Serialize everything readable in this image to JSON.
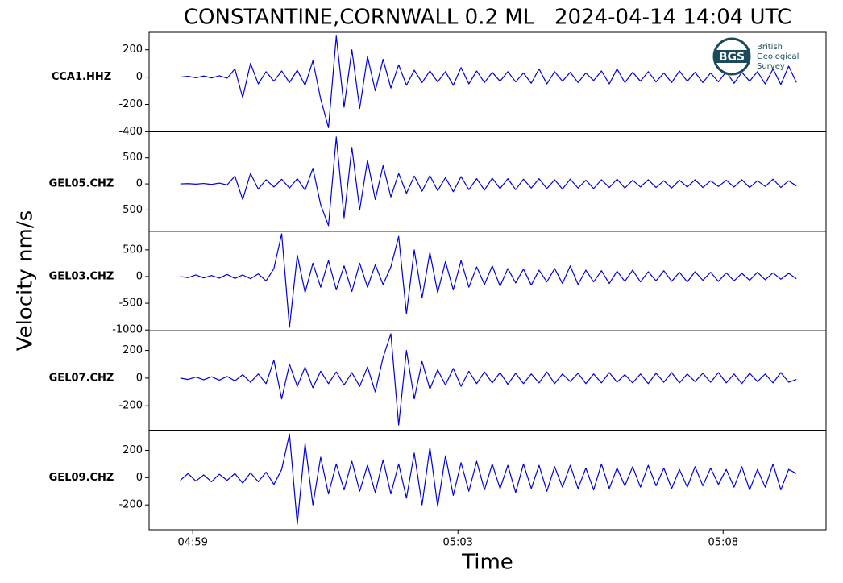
{
  "title": "CONSTANTINE,CORNWALL 0.2 ML   2024-04-14 14:04 UTC",
  "ylabel": "Velocity nm/s",
  "xlabel": "Time",
  "xlim": [
    298.8,
    309.65
  ],
  "xticks": [
    {
      "value": 299.5,
      "label": "04:59"
    },
    {
      "value": 303.75,
      "label": "05:03"
    },
    {
      "value": 308.0,
      "label": "05:08"
    }
  ],
  "logo": {
    "abbr": "BGS",
    "lines": [
      "British",
      "Geological",
      "Survey"
    ]
  },
  "chart_data": [
    {
      "type": "line",
      "label": "CCA1.HHZ",
      "color": "#0000dd",
      "ylim": [
        -400,
        328
      ],
      "yticks": [
        -400,
        -200,
        0,
        200
      ],
      "x": [
        299.3,
        299.425,
        299.55,
        299.675,
        299.8,
        299.925,
        300.05,
        300.175,
        300.3,
        300.425,
        300.55,
        300.675,
        300.8,
        300.925,
        301.05,
        301.175,
        301.3,
        301.425,
        301.55,
        301.675,
        301.8,
        301.925,
        302.05,
        302.175,
        302.3,
        302.425,
        302.55,
        302.675,
        302.8,
        302.925,
        303.05,
        303.175,
        303.3,
        303.425,
        303.55,
        303.675,
        303.8,
        303.925,
        304.05,
        304.175,
        304.3,
        304.425,
        304.55,
        304.675,
        304.8,
        304.925,
        305.05,
        305.175,
        305.3,
        305.425,
        305.55,
        305.675,
        305.8,
        305.925,
        306.05,
        306.175,
        306.3,
        306.425,
        306.55,
        306.675,
        306.8,
        306.925,
        307.05,
        307.175,
        307.3,
        307.425,
        307.55,
        307.675,
        307.8,
        307.925,
        308.05,
        308.175,
        308.3,
        308.425,
        308.55,
        308.675,
        308.8,
        308.925,
        309.05,
        309.175
      ],
      "values": [
        0,
        6,
        -5,
        8,
        -6,
        10,
        -8,
        60,
        -150,
        100,
        -50,
        40,
        -30,
        45,
        -40,
        50,
        -60,
        120,
        -160,
        -370,
        300,
        -220,
        200,
        -230,
        150,
        -100,
        130,
        -80,
        90,
        -60,
        50,
        -40,
        45,
        -35,
        40,
        -60,
        70,
        -50,
        45,
        -40,
        35,
        -30,
        40,
        -35,
        30,
        -45,
        60,
        -50,
        40,
        -30,
        35,
        -40,
        30,
        -25,
        45,
        -50,
        60,
        -40,
        35,
        -30,
        40,
        -35,
        30,
        -40,
        45,
        -30,
        35,
        -40,
        30,
        -35,
        40,
        -45,
        35,
        -30,
        40,
        -50,
        60,
        -55,
        80,
        -40
      ]
    },
    {
      "type": "line",
      "label": "GEL05.CHZ",
      "color": "#0000dd",
      "ylim": [
        -908,
        1000
      ],
      "yticks": [
        -500,
        0,
        500
      ],
      "x": [
        299.3,
        299.425,
        299.55,
        299.675,
        299.8,
        299.925,
        300.05,
        300.175,
        300.3,
        300.425,
        300.55,
        300.675,
        300.8,
        300.925,
        301.05,
        301.175,
        301.3,
        301.425,
        301.55,
        301.675,
        301.8,
        301.925,
        302.05,
        302.175,
        302.3,
        302.425,
        302.55,
        302.675,
        302.8,
        302.925,
        303.05,
        303.175,
        303.3,
        303.425,
        303.55,
        303.675,
        303.8,
        303.925,
        304.05,
        304.175,
        304.3,
        304.425,
        304.55,
        304.675,
        304.8,
        304.925,
        305.05,
        305.175,
        305.3,
        305.425,
        305.55,
        305.675,
        305.8,
        305.925,
        306.05,
        306.175,
        306.3,
        306.425,
        306.55,
        306.675,
        306.8,
        306.925,
        307.05,
        307.175,
        307.3,
        307.425,
        307.55,
        307.675,
        307.8,
        307.925,
        308.05,
        308.175,
        308.3,
        308.425,
        308.55,
        308.675,
        308.8,
        308.925,
        309.05,
        309.175
      ],
      "values": [
        0,
        5,
        -5,
        8,
        -10,
        15,
        -20,
        150,
        -300,
        200,
        -100,
        80,
        -60,
        90,
        -80,
        100,
        -120,
        300,
        -400,
        -800,
        900,
        -650,
        700,
        -500,
        450,
        -300,
        350,
        -250,
        200,
        -180,
        150,
        -140,
        160,
        -130,
        120,
        -150,
        140,
        -110,
        100,
        -120,
        110,
        -90,
        100,
        -110,
        90,
        -80,
        100,
        -90,
        80,
        -100,
        90,
        -80,
        70,
        -90,
        80,
        -70,
        90,
        -80,
        70,
        -60,
        80,
        -70,
        60,
        -80,
        70,
        -60,
        80,
        -70,
        60,
        -50,
        70,
        -60,
        80,
        -70,
        60,
        -50,
        90,
        -70,
        60,
        -40
      ]
    },
    {
      "type": "line",
      "label": "GEL03.CHZ",
      "color": "#0000dd",
      "ylim": [
        -1015,
        848
      ],
      "yticks": [
        -1000,
        -500,
        0,
        500
      ],
      "x": [
        299.3,
        299.425,
        299.55,
        299.675,
        299.8,
        299.925,
        300.05,
        300.175,
        300.3,
        300.425,
        300.55,
        300.675,
        300.8,
        300.925,
        301.05,
        301.175,
        301.3,
        301.425,
        301.55,
        301.675,
        301.8,
        301.925,
        302.05,
        302.175,
        302.3,
        302.425,
        302.55,
        302.675,
        302.8,
        302.925,
        303.05,
        303.175,
        303.3,
        303.425,
        303.55,
        303.675,
        303.8,
        303.925,
        304.05,
        304.175,
        304.3,
        304.425,
        304.55,
        304.675,
        304.8,
        304.925,
        305.05,
        305.175,
        305.3,
        305.425,
        305.55,
        305.675,
        305.8,
        305.925,
        306.05,
        306.175,
        306.3,
        306.425,
        306.55,
        306.675,
        306.8,
        306.925,
        307.05,
        307.175,
        307.3,
        307.425,
        307.55,
        307.675,
        307.8,
        307.925,
        308.05,
        308.175,
        308.3,
        308.425,
        308.55,
        308.675,
        308.8,
        308.925,
        309.05,
        309.175
      ],
      "values": [
        0,
        -20,
        30,
        -25,
        20,
        -30,
        40,
        -35,
        30,
        -40,
        50,
        -80,
        150,
        800,
        -950,
        400,
        -300,
        250,
        -200,
        300,
        -250,
        200,
        -280,
        250,
        -200,
        220,
        -150,
        180,
        750,
        -700,
        500,
        -400,
        450,
        -300,
        280,
        -250,
        300,
        -200,
        180,
        -150,
        200,
        -180,
        150,
        -120,
        140,
        -160,
        120,
        -100,
        150,
        -130,
        200,
        -150,
        120,
        -100,
        110,
        -130,
        100,
        -90,
        120,
        -100,
        90,
        -80,
        110,
        -90,
        80,
        -100,
        90,
        -70,
        80,
        -90,
        70,
        -80,
        60,
        -70,
        80,
        -60,
        70,
        -50,
        60,
        -40
      ]
    },
    {
      "type": "line",
      "label": "GEL07.CHZ",
      "color": "#0000dd",
      "ylim": [
        -377,
        342
      ],
      "yticks": [
        -200,
        0,
        200
      ],
      "x": [
        299.3,
        299.425,
        299.55,
        299.675,
        299.8,
        299.925,
        300.05,
        300.175,
        300.3,
        300.425,
        300.55,
        300.675,
        300.8,
        300.925,
        301.05,
        301.175,
        301.3,
        301.425,
        301.55,
        301.675,
        301.8,
        301.925,
        302.05,
        302.175,
        302.3,
        302.425,
        302.55,
        302.675,
        302.8,
        302.925,
        303.05,
        303.175,
        303.3,
        303.425,
        303.55,
        303.675,
        303.8,
        303.925,
        304.05,
        304.175,
        304.3,
        304.425,
        304.55,
        304.675,
        304.8,
        304.925,
        305.05,
        305.175,
        305.3,
        305.425,
        305.55,
        305.675,
        305.8,
        305.925,
        306.05,
        306.175,
        306.3,
        306.425,
        306.55,
        306.675,
        306.8,
        306.925,
        307.05,
        307.175,
        307.3,
        307.425,
        307.55,
        307.675,
        307.8,
        307.925,
        308.05,
        308.175,
        308.3,
        308.425,
        308.55,
        308.675,
        308.8,
        308.925,
        309.05,
        309.175
      ],
      "values": [
        0,
        -10,
        8,
        -12,
        10,
        -15,
        12,
        -20,
        25,
        -30,
        30,
        -40,
        130,
        -150,
        100,
        -60,
        80,
        -70,
        50,
        -40,
        45,
        -50,
        40,
        -60,
        80,
        -100,
        150,
        320,
        -340,
        200,
        -150,
        120,
        -80,
        60,
        -50,
        70,
        -60,
        50,
        -40,
        45,
        -35,
        40,
        -45,
        35,
        -40,
        30,
        -35,
        45,
        -40,
        30,
        -25,
        35,
        -40,
        30,
        -35,
        40,
        -30,
        25,
        -35,
        30,
        -40,
        35,
        -30,
        40,
        -35,
        30,
        -25,
        35,
        -30,
        40,
        -35,
        30,
        -40,
        35,
        -25,
        30,
        -35,
        40,
        -30,
        -10
      ]
    },
    {
      "type": "line",
      "label": "GEL09.CHZ",
      "color": "#0000dd",
      "ylim": [
        -382,
        347
      ],
      "yticks": [
        -200,
        0,
        200
      ],
      "x": [
        299.3,
        299.425,
        299.55,
        299.675,
        299.8,
        299.925,
        300.05,
        300.175,
        300.3,
        300.425,
        300.55,
        300.675,
        300.8,
        300.925,
        301.05,
        301.175,
        301.3,
        301.425,
        301.55,
        301.675,
        301.8,
        301.925,
        302.05,
        302.175,
        302.3,
        302.425,
        302.55,
        302.675,
        302.8,
        302.925,
        303.05,
        303.175,
        303.3,
        303.425,
        303.55,
        303.675,
        303.8,
        303.925,
        304.05,
        304.175,
        304.3,
        304.425,
        304.55,
        304.675,
        304.8,
        304.925,
        305.05,
        305.175,
        305.3,
        305.425,
        305.55,
        305.675,
        305.8,
        305.925,
        306.05,
        306.175,
        306.3,
        306.425,
        306.55,
        306.675,
        306.8,
        306.925,
        307.05,
        307.175,
        307.3,
        307.425,
        307.55,
        307.675,
        307.8,
        307.925,
        308.05,
        308.175,
        308.3,
        308.425,
        308.55,
        308.675,
        308.8,
        308.925,
        309.05,
        309.175
      ],
      "values": [
        -20,
        30,
        -25,
        20,
        -30,
        25,
        -20,
        30,
        -40,
        35,
        -30,
        40,
        -50,
        60,
        320,
        -340,
        250,
        -200,
        150,
        -120,
        100,
        -90,
        120,
        -100,
        90,
        -110,
        130,
        -120,
        100,
        -150,
        180,
        -200,
        220,
        -210,
        160,
        -130,
        110,
        -100,
        120,
        -90,
        100,
        -80,
        90,
        -110,
        100,
        -80,
        90,
        -100,
        80,
        -70,
        90,
        -80,
        70,
        -90,
        100,
        -80,
        70,
        -60,
        80,
        -70,
        90,
        -60,
        70,
        -80,
        60,
        -70,
        80,
        -60,
        70,
        -50,
        60,
        -70,
        80,
        -90,
        60,
        -70,
        100,
        -90,
        60,
        30
      ]
    }
  ]
}
